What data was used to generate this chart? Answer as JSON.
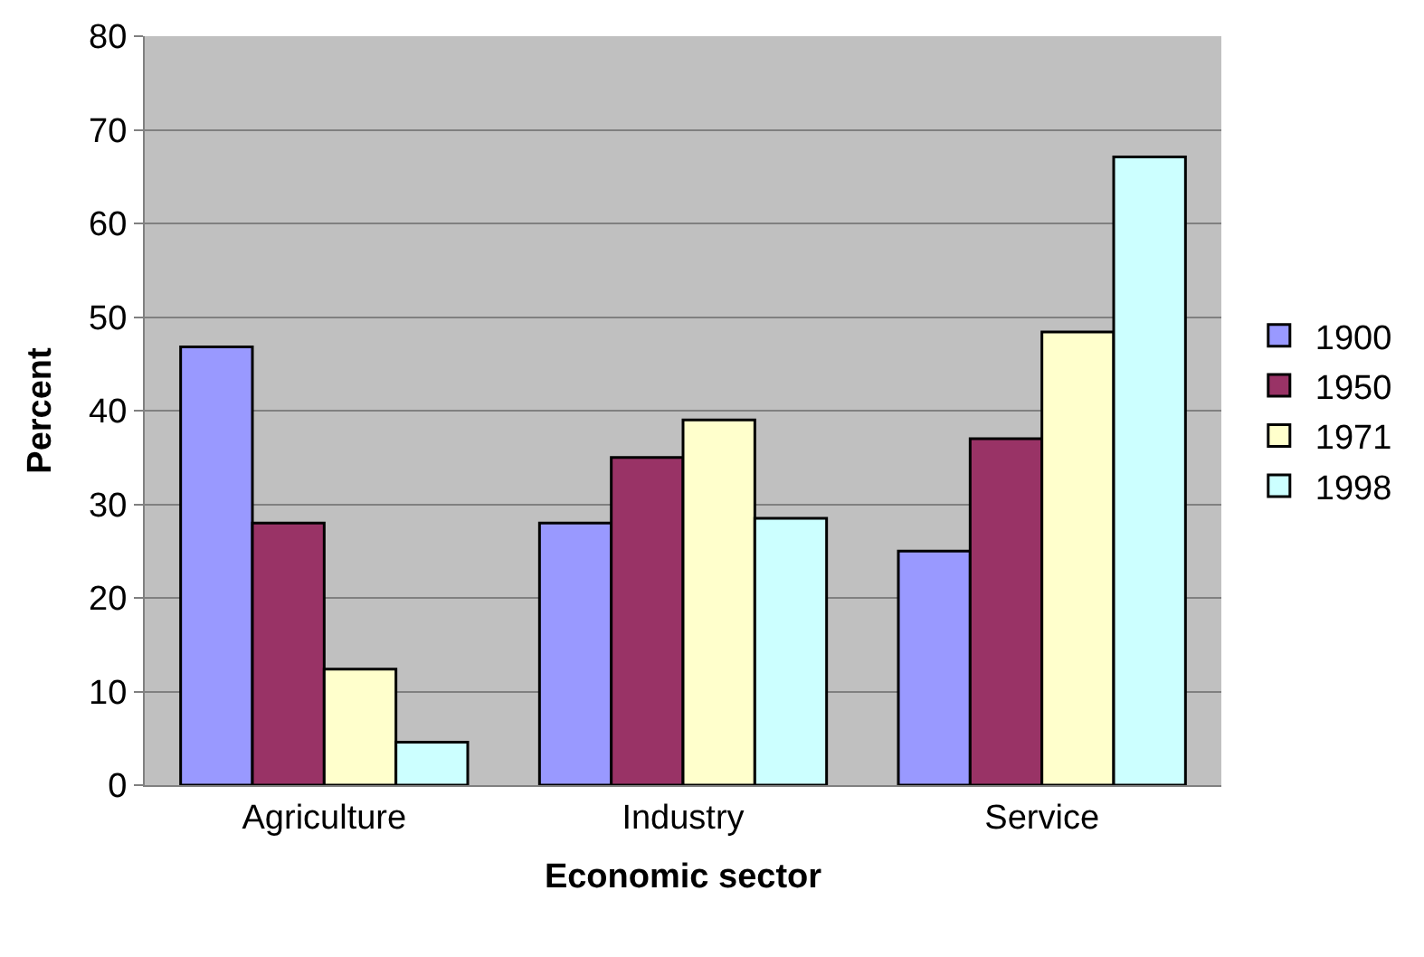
{
  "chart_data": {
    "type": "bar",
    "xlabel": "Economic sector",
    "ylabel": "Percent",
    "categories": [
      "Agriculture",
      "Industry",
      "Service"
    ],
    "series": [
      {
        "name": "1900",
        "color": "#9999ff",
        "values": [
          46.8,
          28.0,
          25.0
        ]
      },
      {
        "name": "1950",
        "color": "#993366",
        "values": [
          28.0,
          35.0,
          37.0
        ]
      },
      {
        "name": "1971",
        "color": "#ffffcc",
        "values": [
          12.4,
          39.0,
          48.4
        ]
      },
      {
        "name": "1998",
        "color": "#ccffff",
        "values": [
          4.6,
          28.5,
          67.1
        ]
      }
    ],
    "ylim": [
      0,
      80
    ],
    "yticks": [
      0,
      10,
      20,
      30,
      40,
      50,
      60,
      70,
      80
    ],
    "grid": "y",
    "legend": "right"
  }
}
